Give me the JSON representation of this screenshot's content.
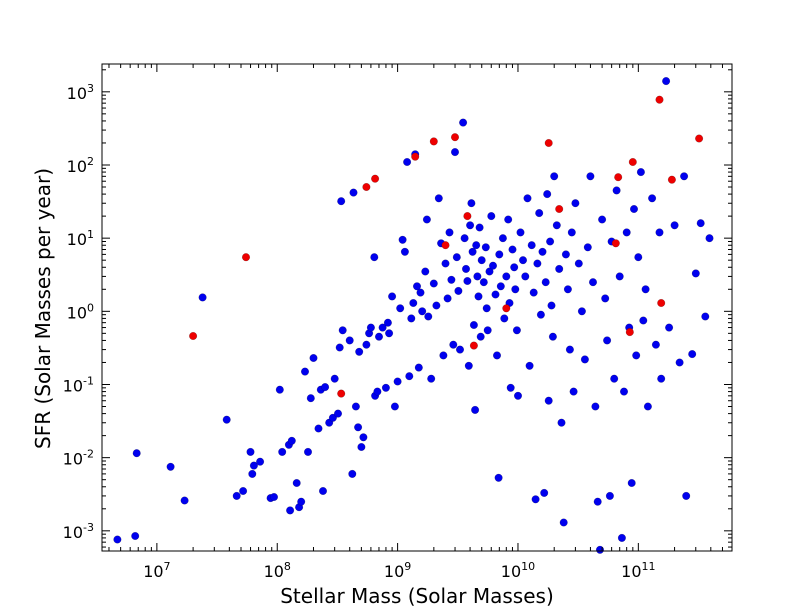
{
  "chart_data": {
    "type": "scatter",
    "xlabel": "Stellar Mass (Solar Masses)",
    "ylabel": "SFR (Solar Masses per year)",
    "x_scale": "log",
    "y_scale": "log",
    "xlim": [
      3500000.0,
      600000000000.0
    ],
    "ylim": [
      0.00053,
      2400.0
    ],
    "grid": false,
    "x_ticks": [
      {
        "value": 10000000.0,
        "base": "10",
        "exp": "7"
      },
      {
        "value": 100000000.0,
        "base": "10",
        "exp": "8"
      },
      {
        "value": 1000000000.0,
        "base": "10",
        "exp": "9"
      },
      {
        "value": 10000000000.0,
        "base": "10",
        "exp": "10"
      },
      {
        "value": 100000000000.0,
        "base": "10",
        "exp": "11"
      }
    ],
    "y_ticks": [
      {
        "value": 0.001,
        "base": "10",
        "exp": "-3"
      },
      {
        "value": 0.01,
        "base": "10",
        "exp": "-2"
      },
      {
        "value": 0.1,
        "base": "10",
        "exp": "-1"
      },
      {
        "value": 1.0,
        "base": "10",
        "exp": "0"
      },
      {
        "value": 10.0,
        "base": "10",
        "exp": "1"
      },
      {
        "value": 100.0,
        "base": "10",
        "exp": "2"
      },
      {
        "value": 1000.0,
        "base": "10",
        "exp": "3"
      }
    ],
    "series": [
      {
        "color": "#0000ee",
        "points": [
          [
            4700000.0,
            0.00076
          ],
          [
            6600000.0,
            0.00085
          ],
          [
            6800000.0,
            0.0115
          ],
          [
            13000000.0,
            0.0075
          ],
          [
            17000000.0,
            0.0026
          ],
          [
            24000000.0,
            1.55
          ],
          [
            38000000.0,
            0.033
          ],
          [
            46000000.0,
            0.003
          ],
          [
            52000000.0,
            0.0035
          ],
          [
            60000000.0,
            0.012
          ],
          [
            62000000.0,
            0.006
          ],
          [
            64000000.0,
            0.0078
          ],
          [
            72000000.0,
            0.0088
          ],
          [
            88000000.0,
            0.0028
          ],
          [
            94000000.0,
            0.0029
          ],
          [
            105000000.0,
            0.085
          ],
          [
            110000000.0,
            0.012
          ],
          [
            125000000.0,
            0.015
          ],
          [
            132000000.0,
            0.017
          ],
          [
            128000000.0,
            0.0019
          ],
          [
            145000000.0,
            0.0045
          ],
          [
            152000000.0,
            0.0021
          ],
          [
            158000000.0,
            0.0025
          ],
          [
            170000000.0,
            0.15
          ],
          [
            180000000.0,
            0.012
          ],
          [
            190000000.0,
            0.065
          ],
          [
            200000000.0,
            0.23
          ],
          [
            230000000.0,
            0.085
          ],
          [
            240000000.0,
            0.0035
          ],
          [
            250000000.0,
            0.092
          ],
          [
            220000000.0,
            0.025
          ],
          [
            270000000.0,
            0.03
          ],
          [
            290000000.0,
            0.035
          ],
          [
            320000000.0,
            0.04
          ],
          [
            300000000.0,
            0.12
          ],
          [
            330000000.0,
            0.32
          ],
          [
            340000000.0,
            32
          ],
          [
            350000000.0,
            0.55
          ],
          [
            400000000.0,
            0.4
          ],
          [
            420000000.0,
            0.006
          ],
          [
            430000000.0,
            42
          ],
          [
            450000000.0,
            0.05
          ],
          [
            470000000.0,
            0.026
          ],
          [
            500000000.0,
            0.014
          ],
          [
            480000000.0,
            0.28
          ],
          [
            520000000.0,
            0.019
          ],
          [
            550000000.0,
            0.35
          ],
          [
            580000000.0,
            0.5
          ],
          [
            600000000.0,
            0.6
          ],
          [
            650000000.0,
            0.07
          ],
          [
            640000000.0,
            5.5
          ],
          [
            680000000.0,
            0.08
          ],
          [
            700000000.0,
            0.45
          ],
          [
            750000000.0,
            0.6
          ],
          [
            800000000.0,
            0.09
          ],
          [
            830000000.0,
            0.7
          ],
          [
            850000000.0,
            0.5
          ],
          [
            900000000.0,
            1.6
          ],
          [
            950000000.0,
            0.05
          ],
          [
            1000000000.0,
            0.11
          ],
          [
            1050000000.0,
            1.1
          ],
          [
            1100000000.0,
            9.5
          ],
          [
            1150000000.0,
            6.5
          ],
          [
            1200000000.0,
            110
          ],
          [
            1250000000.0,
            0.13
          ],
          [
            1300000000.0,
            0.8
          ],
          [
            1350000000.0,
            1.3
          ],
          [
            1400000000.0,
            140
          ],
          [
            1450000000.0,
            2.2
          ],
          [
            1500000000.0,
            0.17
          ],
          [
            1550000000.0,
            1.8
          ],
          [
            1600000000.0,
            1.0
          ],
          [
            1700000000.0,
            3.5
          ],
          [
            1750000000.0,
            18
          ],
          [
            1800000000.0,
            0.85
          ],
          [
            1900000000.0,
            0.12
          ],
          [
            2000000000.0,
            2.4
          ],
          [
            2100000000.0,
            1.2
          ],
          [
            2200000000.0,
            35
          ],
          [
            2300000000.0,
            8.5
          ],
          [
            2400000000.0,
            0.25
          ],
          [
            2500000000.0,
            4.5
          ],
          [
            2600000000.0,
            1.5
          ],
          [
            2700000000.0,
            12
          ],
          [
            2800000000.0,
            2.7
          ],
          [
            2900000000.0,
            0.35
          ],
          [
            3000000000.0,
            150
          ],
          [
            3100000000.0,
            5.5
          ],
          [
            3200000000.0,
            1.9
          ],
          [
            3300000000.0,
            0.3
          ],
          [
            3500000000.0,
            380
          ],
          [
            3600000000.0,
            10
          ],
          [
            3700000000.0,
            3.8
          ],
          [
            3800000000.0,
            2.6
          ],
          [
            3900000000.0,
            0.18
          ],
          [
            4000000000.0,
            15
          ],
          [
            4100000000.0,
            30
          ],
          [
            4200000000.0,
            6.5
          ],
          [
            4300000000.0,
            0.65
          ],
          [
            4400000000.0,
            0.045
          ],
          [
            4500000000.0,
            8.0
          ],
          [
            4600000000.0,
            3.0
          ],
          [
            4700000000.0,
            1.6
          ],
          [
            4800000000.0,
            14
          ],
          [
            4900000000.0,
            0.45
          ],
          [
            5000000000.0,
            5.0
          ],
          [
            5200000000.0,
            2.5
          ],
          [
            5400000000.0,
            7.5
          ],
          [
            5500000000.0,
            1.1
          ],
          [
            5600000000.0,
            0.55
          ],
          [
            5800000000.0,
            3.5
          ],
          [
            6000000000.0,
            20
          ],
          [
            6200000000.0,
            4.2
          ],
          [
            6500000000.0,
            1.7
          ],
          [
            6700000000.0,
            0.25
          ],
          [
            6900000000.0,
            0.0053
          ],
          [
            7000000000.0,
            6.0
          ],
          [
            7200000000.0,
            2.2
          ],
          [
            7500000000.0,
            10
          ],
          [
            7700000000.0,
            0.8
          ],
          [
            8000000000.0,
            3.0
          ],
          [
            8300000000.0,
            18
          ],
          [
            8500000000.0,
            1.3
          ],
          [
            8700000000.0,
            0.09
          ],
          [
            9000000000.0,
            7.0
          ],
          [
            9300000000.0,
            4.0
          ],
          [
            9500000000.0,
            2.0
          ],
          [
            9800000000.0,
            0.55
          ],
          [
            10000000000.0,
            0.07
          ],
          [
            10200000000.0,
            0.0005
          ],
          [
            10500000000.0,
            12
          ],
          [
            11000000000.0,
            5.0
          ],
          [
            11500000000.0,
            3.0
          ],
          [
            12000000000.0,
            35
          ],
          [
            12500000000.0,
            0.18
          ],
          [
            13000000000.0,
            8.0
          ],
          [
            13500000000.0,
            1.8
          ],
          [
            14000000000.0,
            0.0027
          ],
          [
            14500000000.0,
            4.5
          ],
          [
            15000000000.0,
            22
          ],
          [
            15500000000.0,
            0.9
          ],
          [
            16000000000.0,
            6.5
          ],
          [
            16500000000.0,
            0.0033
          ],
          [
            17000000000.0,
            2.5
          ],
          [
            17500000000.0,
            40
          ],
          [
            18000000000.0,
            0.06
          ],
          [
            18500000000.0,
            9.0
          ],
          [
            19000000000.0,
            1.2
          ],
          [
            19500000000.0,
            0.45
          ],
          [
            20000000000.0,
            70
          ],
          [
            21000000000.0,
            15
          ],
          [
            22000000000.0,
            3.8
          ],
          [
            23000000000.0,
            0.03
          ],
          [
            24000000000.0,
            0.0013
          ],
          [
            25000000000.0,
            6.0
          ],
          [
            26000000000.0,
            2.0
          ],
          [
            27000000000.0,
            0.3
          ],
          [
            28000000000.0,
            12
          ],
          [
            29000000000.0,
            0.08
          ],
          [
            30000000000.0,
            30
          ],
          [
            32000000000.0,
            4.5
          ],
          [
            34000000000.0,
            1.0
          ],
          [
            36000000000.0,
            0.22
          ],
          [
            38000000000.0,
            7.5
          ],
          [
            40000000000.0,
            70
          ],
          [
            42000000000.0,
            2.5
          ],
          [
            44000000000.0,
            0.05
          ],
          [
            46000000000.0,
            0.0025
          ],
          [
            48000000000.0,
            0.00055
          ],
          [
            50000000000.0,
            18
          ],
          [
            53000000000.0,
            1.5
          ],
          [
            55000000000.0,
            0.4
          ],
          [
            58000000000.0,
            0.003
          ],
          [
            60000000000.0,
            9.0
          ],
          [
            63000000000.0,
            0.12
          ],
          [
            66000000000.0,
            45
          ],
          [
            70000000000.0,
            3.0
          ],
          [
            73000000000.0,
            0.0008
          ],
          [
            76000000000.0,
            0.08
          ],
          [
            80000000000.0,
            12
          ],
          [
            84000000000.0,
            0.6
          ],
          [
            88000000000.0,
            0.0045
          ],
          [
            92000000000.0,
            25
          ],
          [
            96000000000.0,
            0.25
          ],
          [
            100000000000.0,
            5.5
          ],
          [
            105000000000.0,
            80
          ],
          [
            110000000000.0,
            0.75
          ],
          [
            115000000000.0,
            2.0
          ],
          [
            120000000000.0,
            0.05
          ],
          [
            130000000000.0,
            35
          ],
          [
            140000000000.0,
            0.35
          ],
          [
            150000000000.0,
            12
          ],
          [
            155000000000.0,
            0.12
          ],
          [
            170000000000.0,
            1400
          ],
          [
            180000000000.0,
            0.6
          ],
          [
            200000000000.0,
            15
          ],
          [
            220000000000.0,
            0.2
          ],
          [
            240000000000.0,
            70
          ],
          [
            250000000000.0,
            0.003
          ],
          [
            280000000000.0,
            0.26
          ],
          [
            300000000000.0,
            3.3
          ],
          [
            330000000000.0,
            16
          ],
          [
            360000000000.0,
            0.85
          ],
          [
            390000000000.0,
            10
          ]
        ]
      },
      {
        "color": "#ee0000",
        "points": [
          [
            20000000.0,
            0.46
          ],
          [
            55000000.0,
            5.5
          ],
          [
            340000000.0,
            0.075
          ],
          [
            550000000.0,
            50
          ],
          [
            650000000.0,
            65
          ],
          [
            1400000000.0,
            130
          ],
          [
            2000000000.0,
            210
          ],
          [
            3000000000.0,
            240
          ],
          [
            2500000000.0,
            8.0
          ],
          [
            3800000000.0,
            20
          ],
          [
            4300000000.0,
            0.34
          ],
          [
            8000000000.0,
            1.1
          ],
          [
            18000000000.0,
            200
          ],
          [
            22000000000.0,
            25
          ],
          [
            65000000000.0,
            8.5
          ],
          [
            68000000000.0,
            68
          ],
          [
            90000000000.0,
            110
          ],
          [
            85000000000.0,
            0.52
          ],
          [
            150000000000.0,
            780
          ],
          [
            155000000000.0,
            1.3
          ],
          [
            190000000000.0,
            63
          ],
          [
            320000000000.0,
            230
          ]
        ]
      }
    ]
  }
}
